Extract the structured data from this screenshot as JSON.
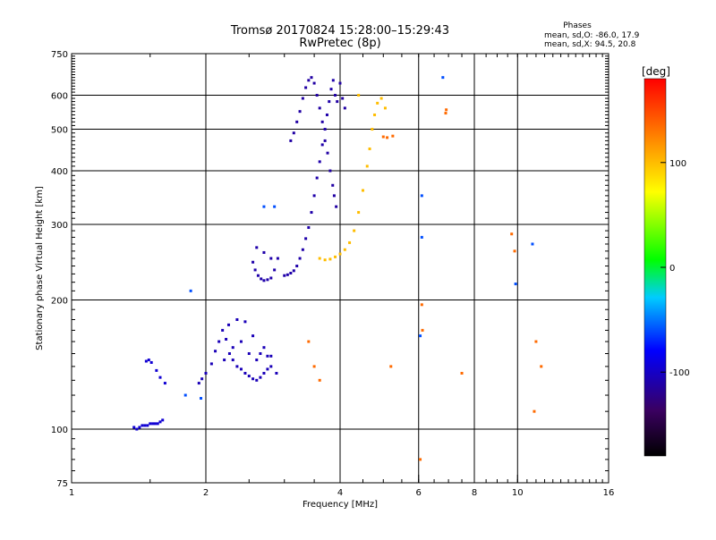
{
  "chart_data": {
    "type": "scatter",
    "title": "Tromsø 20170824 15:28:00–15:29:43",
    "subtitle": "RwPretec (8p)",
    "xlabel": "Frequency [MHz]",
    "ylabel": "Stationary phase Virtual Height [km]",
    "x_scale": "log",
    "y_scale": "log",
    "xlim": [
      1,
      16
    ],
    "ylim": [
      75,
      750
    ],
    "grid": true,
    "x_ticks": [
      1,
      2,
      4,
      6,
      8,
      10,
      16
    ],
    "x_tick_labels": [
      "1",
      "2",
      "4",
      "6",
      "8",
      "10",
      "16"
    ],
    "y_ticks": [
      75,
      100,
      200,
      300,
      400,
      500,
      600,
      750
    ],
    "y_tick_labels": [
      "75",
      "100",
      "200",
      "300",
      "400",
      "500",
      "600",
      "750"
    ],
    "stats": {
      "heading": "Phases",
      "line_o": "mean, sd,O: -86.0, 17.9",
      "line_x": "mean, sd,X:  94.5, 20.8"
    },
    "colorbar": {
      "label": "[deg]",
      "min": -180,
      "max": 180,
      "ticks": [
        100,
        0,
        -100
      ],
      "tick_labels": [
        "100",
        "0",
        "-100"
      ]
    },
    "series": [
      {
        "name": "",
        "phase": -95,
        "points": [
          [
            1.38,
            101
          ],
          [
            1.4,
            100
          ],
          [
            1.42,
            101
          ],
          [
            1.44,
            102
          ],
          [
            1.46,
            102
          ],
          [
            1.48,
            102
          ],
          [
            1.5,
            103
          ],
          [
            1.52,
            103
          ],
          [
            1.54,
            103
          ],
          [
            1.56,
            103
          ],
          [
            1.58,
            104
          ],
          [
            1.6,
            105
          ],
          [
            1.47,
            144
          ],
          [
            1.49,
            145
          ],
          [
            1.51,
            143
          ],
          [
            1.55,
            137
          ],
          [
            1.58,
            132
          ],
          [
            1.62,
            128
          ]
        ]
      },
      {
        "name": "",
        "phase": -105,
        "points": [
          [
            1.93,
            128
          ],
          [
            1.96,
            131
          ],
          [
            2.0,
            135
          ],
          [
            2.06,
            142
          ],
          [
            2.1,
            152
          ],
          [
            2.14,
            160
          ],
          [
            2.18,
            170
          ],
          [
            2.22,
            162
          ],
          [
            2.26,
            150
          ],
          [
            2.3,
            145
          ],
          [
            2.35,
            140
          ],
          [
            2.4,
            138
          ],
          [
            2.45,
            135
          ],
          [
            2.5,
            133
          ],
          [
            2.55,
            131
          ],
          [
            2.6,
            130
          ],
          [
            2.65,
            132
          ],
          [
            2.7,
            135
          ],
          [
            2.75,
            138
          ],
          [
            2.8,
            140
          ],
          [
            2.88,
            135
          ],
          [
            2.25,
            175
          ],
          [
            2.35,
            180
          ],
          [
            2.45,
            178
          ],
          [
            2.55,
            165
          ],
          [
            2.65,
            150
          ],
          [
            2.75,
            148
          ],
          [
            2.2,
            145
          ],
          [
            2.3,
            155
          ],
          [
            2.4,
            160
          ],
          [
            2.5,
            150
          ],
          [
            2.6,
            145
          ],
          [
            2.7,
            155
          ],
          [
            2.8,
            148
          ]
        ]
      },
      {
        "name": "",
        "phase": -110,
        "points": [
          [
            2.55,
            245
          ],
          [
            2.58,
            235
          ],
          [
            2.62,
            228
          ],
          [
            2.66,
            224
          ],
          [
            2.7,
            222
          ],
          [
            2.75,
            223
          ],
          [
            2.8,
            225
          ],
          [
            2.85,
            235
          ],
          [
            2.9,
            250
          ],
          [
            2.6,
            265
          ],
          [
            2.7,
            258
          ],
          [
            2.8,
            250
          ],
          [
            3.0,
            228
          ],
          [
            3.05,
            229
          ],
          [
            3.1,
            231
          ],
          [
            3.15,
            234
          ],
          [
            3.2,
            240
          ],
          [
            3.25,
            250
          ],
          [
            3.3,
            262
          ],
          [
            3.35,
            278
          ],
          [
            3.4,
            295
          ],
          [
            3.45,
            320
          ],
          [
            3.5,
            350
          ],
          [
            3.55,
            385
          ],
          [
            3.6,
            420
          ],
          [
            3.65,
            460
          ],
          [
            3.7,
            500
          ],
          [
            3.74,
            540
          ],
          [
            3.78,
            580
          ],
          [
            3.82,
            620
          ],
          [
            3.86,
            650
          ]
        ]
      },
      {
        "name": "",
        "phase": -112,
        "points": [
          [
            3.1,
            470
          ],
          [
            3.15,
            490
          ],
          [
            3.2,
            520
          ],
          [
            3.25,
            550
          ],
          [
            3.3,
            590
          ],
          [
            3.35,
            625
          ],
          [
            3.4,
            650
          ],
          [
            3.45,
            660
          ],
          [
            3.5,
            640
          ],
          [
            3.55,
            600
          ],
          [
            3.6,
            560
          ],
          [
            3.65,
            520
          ],
          [
            3.7,
            470
          ],
          [
            3.75,
            440
          ],
          [
            3.8,
            400
          ],
          [
            3.85,
            370
          ],
          [
            3.88,
            350
          ],
          [
            3.92,
            330
          ],
          [
            3.9,
            600
          ],
          [
            3.94,
            580
          ],
          [
            4.0,
            640
          ],
          [
            4.05,
            590
          ],
          [
            4.1,
            560
          ]
        ]
      },
      {
        "name": "",
        "phase": 100,
        "points": [
          [
            3.6,
            250
          ],
          [
            3.7,
            248
          ],
          [
            3.8,
            249
          ],
          [
            3.9,
            252
          ],
          [
            4.0,
            256
          ],
          [
            4.1,
            262
          ],
          [
            4.2,
            272
          ],
          [
            4.3,
            290
          ],
          [
            4.4,
            320
          ],
          [
            4.5,
            360
          ],
          [
            4.6,
            410
          ],
          [
            4.66,
            450
          ],
          [
            4.72,
            500
          ],
          [
            4.78,
            540
          ],
          [
            4.85,
            575
          ],
          [
            4.95,
            590
          ],
          [
            5.05,
            560
          ],
          [
            4.4,
            600
          ]
        ]
      },
      {
        "name": "",
        "phase": 135,
        "points": [
          [
            5.0,
            480
          ],
          [
            5.1,
            478
          ],
          [
            5.25,
            482
          ],
          [
            6.9,
            545
          ],
          [
            6.92,
            555
          ],
          [
            3.5,
            140
          ],
          [
            3.6,
            130
          ],
          [
            3.4,
            160
          ],
          [
            5.2,
            140
          ],
          [
            7.5,
            135
          ],
          [
            9.7,
            285
          ],
          [
            9.85,
            260
          ],
          [
            10.9,
            110
          ],
          [
            11.0,
            160
          ],
          [
            11.3,
            140
          ],
          [
            6.05,
            85
          ],
          [
            6.1,
            195
          ],
          [
            6.12,
            170
          ]
        ]
      },
      {
        "name": "",
        "phase": -60,
        "points": [
          [
            2.7,
            330
          ],
          [
            2.85,
            330
          ],
          [
            1.85,
            210
          ],
          [
            1.8,
            120
          ],
          [
            1.95,
            118
          ],
          [
            6.8,
            660
          ],
          [
            9.9,
            218
          ],
          [
            10.8,
            270
          ],
          [
            6.1,
            350
          ],
          [
            6.1,
            280
          ],
          [
            6.05,
            165
          ]
        ]
      }
    ]
  }
}
